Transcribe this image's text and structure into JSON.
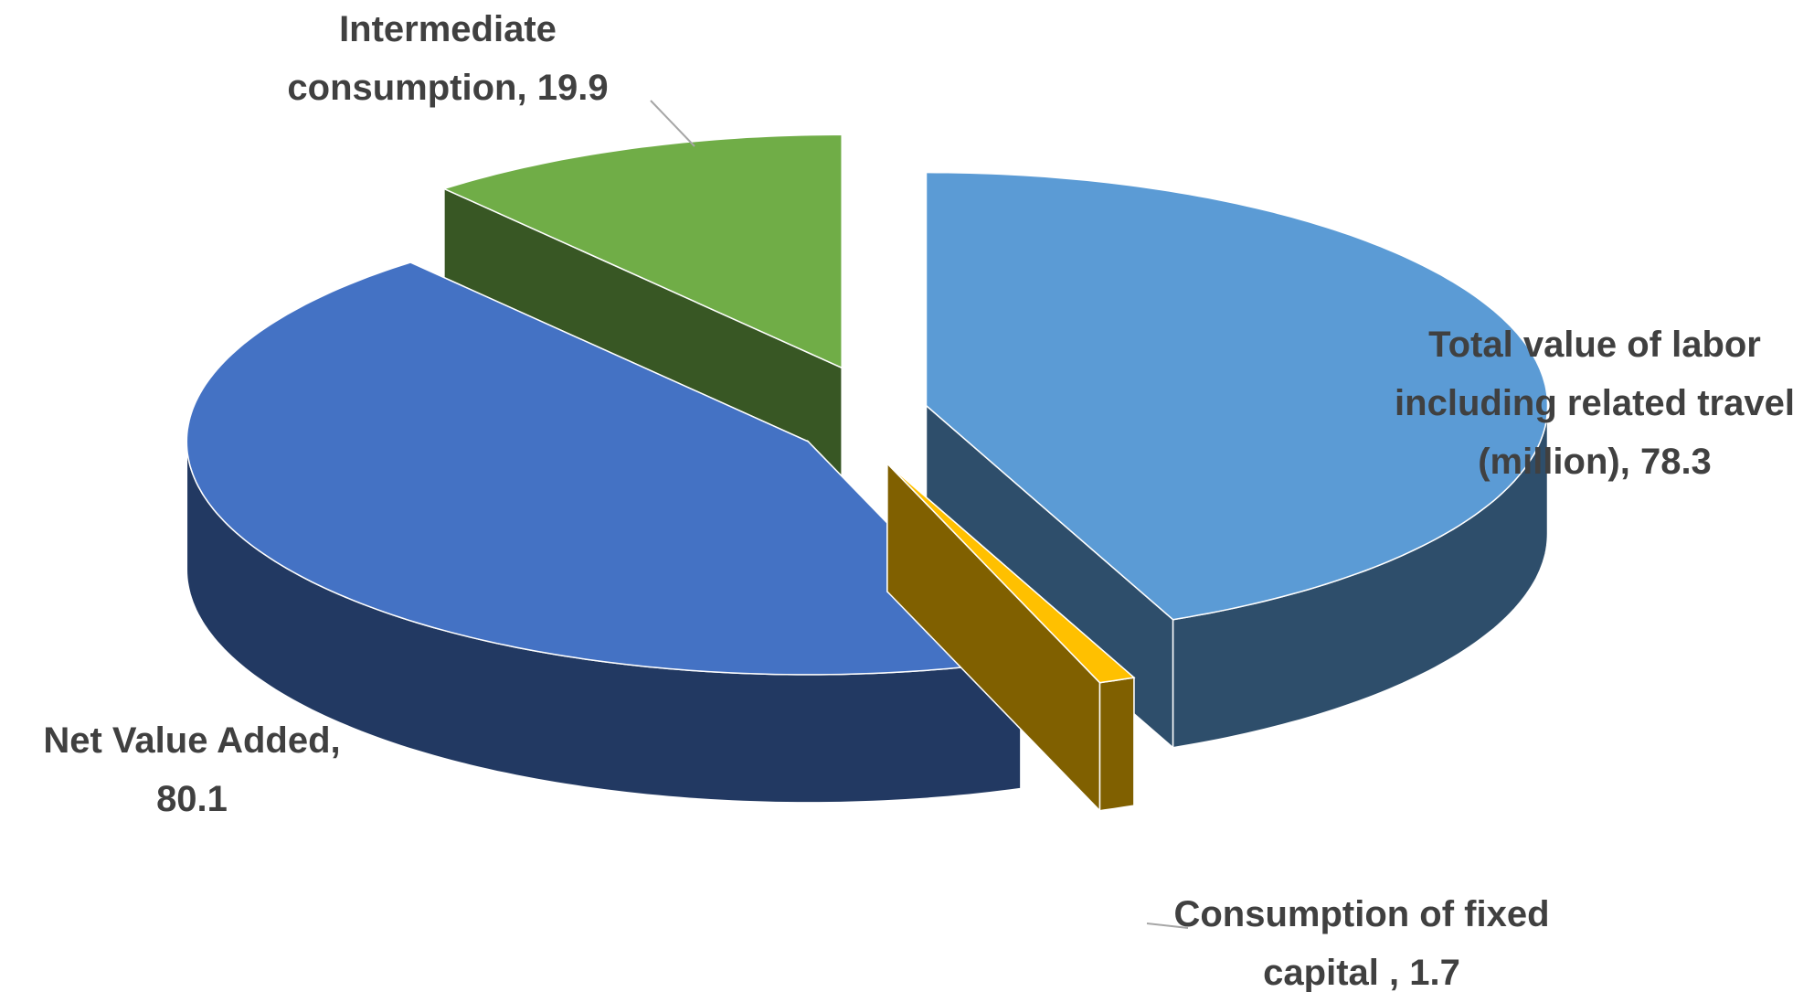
{
  "chart_data": {
    "type": "pie3d",
    "categories": [
      "Total value of labor including related travel (million),",
      "Consumption of fixed capital ,",
      "Net Value Added,",
      "Intermediate consumption,"
    ],
    "values": [
      78.3,
      1.7,
      80.1,
      19.9
    ],
    "colors": [
      "#5b9bd5",
      "#ffc000",
      "#4472c4",
      "#70ad47"
    ]
  }
}
